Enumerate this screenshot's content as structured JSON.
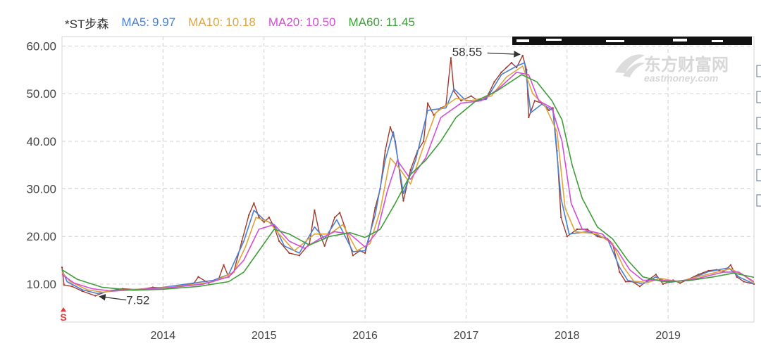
{
  "legend": {
    "stock_name": "*ST步森",
    "items": [
      {
        "label": "MA5:",
        "value": "9.97",
        "color": "#4a7fd4"
      },
      {
        "label": "MA10:",
        "value": "10.18",
        "color": "#e0a43a"
      },
      {
        "label": "MA20:",
        "value": "10.50",
        "color": "#d24fd6"
      },
      {
        "label": "MA60:",
        "value": "11.45",
        "color": "#3f9d3a"
      }
    ]
  },
  "watermark": {
    "cn": "东方财富网",
    "en": "eastmoney.com"
  },
  "marker": {
    "text": "S",
    "color": "#e53935"
  },
  "chart_data": {
    "type": "line",
    "x_tick_labels": [
      "2014",
      "2015",
      "2016",
      "2017",
      "2018",
      "2019"
    ],
    "y_tick_labels": [
      "10.00",
      "20.00",
      "30.00",
      "40.00",
      "50.00",
      "60.00"
    ],
    "ylim": [
      2.0,
      62.0
    ],
    "xlim": [
      2013.0,
      2019.85
    ],
    "grid": true,
    "annotations": [
      {
        "text": "58.55",
        "x": 2017.56,
        "y": 58.55
      },
      {
        "text": "7.52",
        "x": 2013.33,
        "y": 7.52
      }
    ],
    "series": [
      {
        "name": "price",
        "color": "#a03a2c",
        "points": [
          [
            2013.0,
            13.5
          ],
          [
            2013.02,
            9.8
          ],
          [
            2013.1,
            9.5
          ],
          [
            2013.2,
            8.5
          ],
          [
            2013.33,
            7.52
          ],
          [
            2013.45,
            8.5
          ],
          [
            2013.6,
            9.0
          ],
          [
            2013.75,
            8.8
          ],
          [
            2013.9,
            9.3
          ],
          [
            2014.0,
            9.2
          ],
          [
            2014.15,
            9.5
          ],
          [
            2014.3,
            10.0
          ],
          [
            2014.35,
            11.5
          ],
          [
            2014.45,
            10.2
          ],
          [
            2014.55,
            11.0
          ],
          [
            2014.6,
            14.0
          ],
          [
            2014.65,
            11.5
          ],
          [
            2014.7,
            12.5
          ],
          [
            2014.78,
            19.0
          ],
          [
            2014.85,
            24.5
          ],
          [
            2014.9,
            27.0
          ],
          [
            2014.95,
            24.0
          ],
          [
            2015.0,
            23.0
          ],
          [
            2015.05,
            24.0
          ],
          [
            2015.1,
            22.0
          ],
          [
            2015.15,
            19.0
          ],
          [
            2015.25,
            16.5
          ],
          [
            2015.35,
            16.0
          ],
          [
            2015.45,
            18.5
          ],
          [
            2015.5,
            25.5
          ],
          [
            2015.55,
            20.5
          ],
          [
            2015.6,
            18.0
          ],
          [
            2015.7,
            24.0
          ],
          [
            2015.75,
            25.0
          ],
          [
            2015.8,
            22.0
          ],
          [
            2015.88,
            16.0
          ],
          [
            2015.95,
            17.0
          ],
          [
            2016.0,
            16.5
          ],
          [
            2016.05,
            20.5
          ],
          [
            2016.1,
            26.0
          ],
          [
            2016.15,
            30.0
          ],
          [
            2016.2,
            38.0
          ],
          [
            2016.25,
            43.0
          ],
          [
            2016.3,
            40.0
          ],
          [
            2016.38,
            27.5
          ],
          [
            2016.45,
            34.0
          ],
          [
            2016.52,
            38.0
          ],
          [
            2016.58,
            40.0
          ],
          [
            2016.62,
            48.0
          ],
          [
            2016.68,
            45.5
          ],
          [
            2016.75,
            47.0
          ],
          [
            2016.8,
            47.5
          ],
          [
            2016.85,
            57.5
          ],
          [
            2016.88,
            50.5
          ],
          [
            2016.95,
            48.5
          ],
          [
            2017.05,
            49.5
          ],
          [
            2017.12,
            48.5
          ],
          [
            2017.2,
            49.0
          ],
          [
            2017.28,
            52.5
          ],
          [
            2017.35,
            54.5
          ],
          [
            2017.4,
            55.5
          ],
          [
            2017.45,
            56.5
          ],
          [
            2017.5,
            55.5
          ],
          [
            2017.56,
            58.0
          ],
          [
            2017.6,
            55.0
          ],
          [
            2017.62,
            45.0
          ],
          [
            2017.68,
            48.5
          ],
          [
            2017.75,
            48.0
          ],
          [
            2017.82,
            46.5
          ],
          [
            2017.86,
            47.0
          ],
          [
            2017.9,
            38.0
          ],
          [
            2017.94,
            24.0
          ],
          [
            2018.0,
            20.0
          ],
          [
            2018.1,
            21.5
          ],
          [
            2018.2,
            21.5
          ],
          [
            2018.3,
            20.0
          ],
          [
            2018.4,
            19.5
          ],
          [
            2018.45,
            18.5
          ],
          [
            2018.52,
            12.5
          ],
          [
            2018.58,
            10.5
          ],
          [
            2018.65,
            10.5
          ],
          [
            2018.72,
            9.5
          ],
          [
            2018.8,
            10.8
          ],
          [
            2018.88,
            12.0
          ],
          [
            2018.95,
            10.0
          ],
          [
            2019.05,
            10.8
          ],
          [
            2019.12,
            10.2
          ],
          [
            2019.2,
            11.0
          ],
          [
            2019.3,
            12.0
          ],
          [
            2019.4,
            12.8
          ],
          [
            2019.48,
            13.0
          ],
          [
            2019.55,
            12.6
          ],
          [
            2019.62,
            14.0
          ],
          [
            2019.68,
            11.5
          ],
          [
            2019.75,
            10.5
          ],
          [
            2019.85,
            10.0
          ]
        ]
      },
      {
        "name": "MA5",
        "color": "#4a7fd4",
        "points": [
          [
            2013.0,
            13.0
          ],
          [
            2013.05,
            10.5
          ],
          [
            2013.2,
            8.8
          ],
          [
            2013.35,
            8.0
          ],
          [
            2013.5,
            8.6
          ],
          [
            2013.75,
            8.9
          ],
          [
            2014.0,
            9.3
          ],
          [
            2014.3,
            10.2
          ],
          [
            2014.5,
            10.8
          ],
          [
            2014.65,
            12.0
          ],
          [
            2014.8,
            19.0
          ],
          [
            2014.9,
            25.5
          ],
          [
            2015.0,
            23.5
          ],
          [
            2015.1,
            22.5
          ],
          [
            2015.2,
            18.0
          ],
          [
            2015.35,
            16.5
          ],
          [
            2015.5,
            22.0
          ],
          [
            2015.6,
            19.5
          ],
          [
            2015.72,
            23.5
          ],
          [
            2015.88,
            16.8
          ],
          [
            2016.0,
            17.0
          ],
          [
            2016.1,
            24.5
          ],
          [
            2016.2,
            36.0
          ],
          [
            2016.28,
            42.0
          ],
          [
            2016.38,
            29.0
          ],
          [
            2016.5,
            36.0
          ],
          [
            2016.62,
            46.5
          ],
          [
            2016.8,
            47.0
          ],
          [
            2016.88,
            51.0
          ],
          [
            2017.0,
            48.5
          ],
          [
            2017.2,
            48.8
          ],
          [
            2017.35,
            54.0
          ],
          [
            2017.5,
            55.8
          ],
          [
            2017.58,
            56.5
          ],
          [
            2017.64,
            46.0
          ],
          [
            2017.75,
            47.8
          ],
          [
            2017.86,
            46.5
          ],
          [
            2017.94,
            28.0
          ],
          [
            2018.02,
            20.5
          ],
          [
            2018.2,
            21.0
          ],
          [
            2018.4,
            19.5
          ],
          [
            2018.52,
            13.5
          ],
          [
            2018.6,
            10.8
          ],
          [
            2018.75,
            10.0
          ],
          [
            2018.88,
            11.5
          ],
          [
            2019.0,
            10.3
          ],
          [
            2019.2,
            10.9
          ],
          [
            2019.4,
            12.6
          ],
          [
            2019.6,
            13.4
          ],
          [
            2019.7,
            11.5
          ],
          [
            2019.85,
            10.0
          ]
        ]
      },
      {
        "name": "MA10",
        "color": "#e0a43a",
        "points": [
          [
            2013.0,
            12.5
          ],
          [
            2013.08,
            10.5
          ],
          [
            2013.25,
            8.8
          ],
          [
            2013.4,
            8.3
          ],
          [
            2013.6,
            8.7
          ],
          [
            2013.9,
            9.1
          ],
          [
            2014.2,
            9.6
          ],
          [
            2014.5,
            10.5
          ],
          [
            2014.7,
            12.5
          ],
          [
            2014.82,
            18.0
          ],
          [
            2014.92,
            24.0
          ],
          [
            2015.05,
            23.0
          ],
          [
            2015.15,
            20.5
          ],
          [
            2015.3,
            17.0
          ],
          [
            2015.5,
            20.5
          ],
          [
            2015.65,
            20.5
          ],
          [
            2015.78,
            22.5
          ],
          [
            2015.92,
            17.0
          ],
          [
            2016.05,
            18.5
          ],
          [
            2016.15,
            25.5
          ],
          [
            2016.25,
            36.5
          ],
          [
            2016.35,
            34.0
          ],
          [
            2016.45,
            31.0
          ],
          [
            2016.58,
            39.0
          ],
          [
            2016.7,
            46.0
          ],
          [
            2016.9,
            49.0
          ],
          [
            2017.05,
            48.5
          ],
          [
            2017.25,
            49.5
          ],
          [
            2017.4,
            53.5
          ],
          [
            2017.56,
            55.8
          ],
          [
            2017.66,
            50.0
          ],
          [
            2017.78,
            47.5
          ],
          [
            2017.9,
            42.0
          ],
          [
            2017.98,
            26.0
          ],
          [
            2018.08,
            21.0
          ],
          [
            2018.3,
            20.5
          ],
          [
            2018.45,
            18.5
          ],
          [
            2018.56,
            13.5
          ],
          [
            2018.66,
            10.6
          ],
          [
            2018.8,
            10.3
          ],
          [
            2018.92,
            11.2
          ],
          [
            2019.1,
            10.5
          ],
          [
            2019.35,
            11.8
          ],
          [
            2019.62,
            13.2
          ],
          [
            2019.75,
            11.8
          ],
          [
            2019.85,
            10.2
          ]
        ]
      },
      {
        "name": "MA20",
        "color": "#d24fd6",
        "points": [
          [
            2013.0,
            12.0
          ],
          [
            2013.12,
            10.2
          ],
          [
            2013.3,
            9.0
          ],
          [
            2013.5,
            8.5
          ],
          [
            2013.8,
            8.9
          ],
          [
            2014.1,
            9.3
          ],
          [
            2014.4,
            10.0
          ],
          [
            2014.65,
            11.5
          ],
          [
            2014.8,
            15.0
          ],
          [
            2014.95,
            21.5
          ],
          [
            2015.1,
            22.5
          ],
          [
            2015.25,
            19.0
          ],
          [
            2015.4,
            17.5
          ],
          [
            2015.55,
            19.5
          ],
          [
            2015.7,
            21.0
          ],
          [
            2015.85,
            20.5
          ],
          [
            2016.0,
            17.8
          ],
          [
            2016.12,
            21.0
          ],
          [
            2016.22,
            29.5
          ],
          [
            2016.32,
            36.0
          ],
          [
            2016.45,
            32.0
          ],
          [
            2016.6,
            36.5
          ],
          [
            2016.75,
            45.0
          ],
          [
            2016.95,
            48.0
          ],
          [
            2017.15,
            48.5
          ],
          [
            2017.32,
            51.0
          ],
          [
            2017.5,
            54.5
          ],
          [
            2017.62,
            54.0
          ],
          [
            2017.72,
            48.5
          ],
          [
            2017.85,
            47.0
          ],
          [
            2017.95,
            40.0
          ],
          [
            2018.04,
            27.0
          ],
          [
            2018.15,
            21.5
          ],
          [
            2018.35,
            20.5
          ],
          [
            2018.5,
            17.0
          ],
          [
            2018.62,
            13.0
          ],
          [
            2018.75,
            10.8
          ],
          [
            2018.92,
            10.8
          ],
          [
            2019.1,
            10.6
          ],
          [
            2019.3,
            11.2
          ],
          [
            2019.55,
            12.5
          ],
          [
            2019.7,
            12.5
          ],
          [
            2019.85,
            10.5
          ]
        ]
      },
      {
        "name": "MA60",
        "color": "#3f9d3a",
        "points": [
          [
            2013.0,
            13.0
          ],
          [
            2013.15,
            11.0
          ],
          [
            2013.4,
            9.3
          ],
          [
            2013.7,
            8.7
          ],
          [
            2014.0,
            8.9
          ],
          [
            2014.35,
            9.5
          ],
          [
            2014.65,
            10.5
          ],
          [
            2014.8,
            12.5
          ],
          [
            2014.95,
            17.0
          ],
          [
            2015.1,
            21.5
          ],
          [
            2015.25,
            20.5
          ],
          [
            2015.45,
            18.2
          ],
          [
            2015.65,
            20.0
          ],
          [
            2015.85,
            20.8
          ],
          [
            2016.0,
            19.8
          ],
          [
            2016.15,
            21.5
          ],
          [
            2016.3,
            27.0
          ],
          [
            2016.45,
            33.0
          ],
          [
            2016.6,
            36.0
          ],
          [
            2016.75,
            40.0
          ],
          [
            2016.9,
            45.0
          ],
          [
            2017.1,
            48.5
          ],
          [
            2017.3,
            50.5
          ],
          [
            2017.55,
            54.0
          ],
          [
            2017.7,
            52.5
          ],
          [
            2017.85,
            48.5
          ],
          [
            2017.95,
            44.5
          ],
          [
            2018.05,
            35.0
          ],
          [
            2018.15,
            28.0
          ],
          [
            2018.3,
            22.0
          ],
          [
            2018.45,
            19.5
          ],
          [
            2018.6,
            15.0
          ],
          [
            2018.75,
            11.5
          ],
          [
            2018.95,
            10.5
          ],
          [
            2019.2,
            10.7
          ],
          [
            2019.45,
            11.5
          ],
          [
            2019.65,
            12.3
          ],
          [
            2019.85,
            11.4
          ]
        ]
      }
    ]
  }
}
